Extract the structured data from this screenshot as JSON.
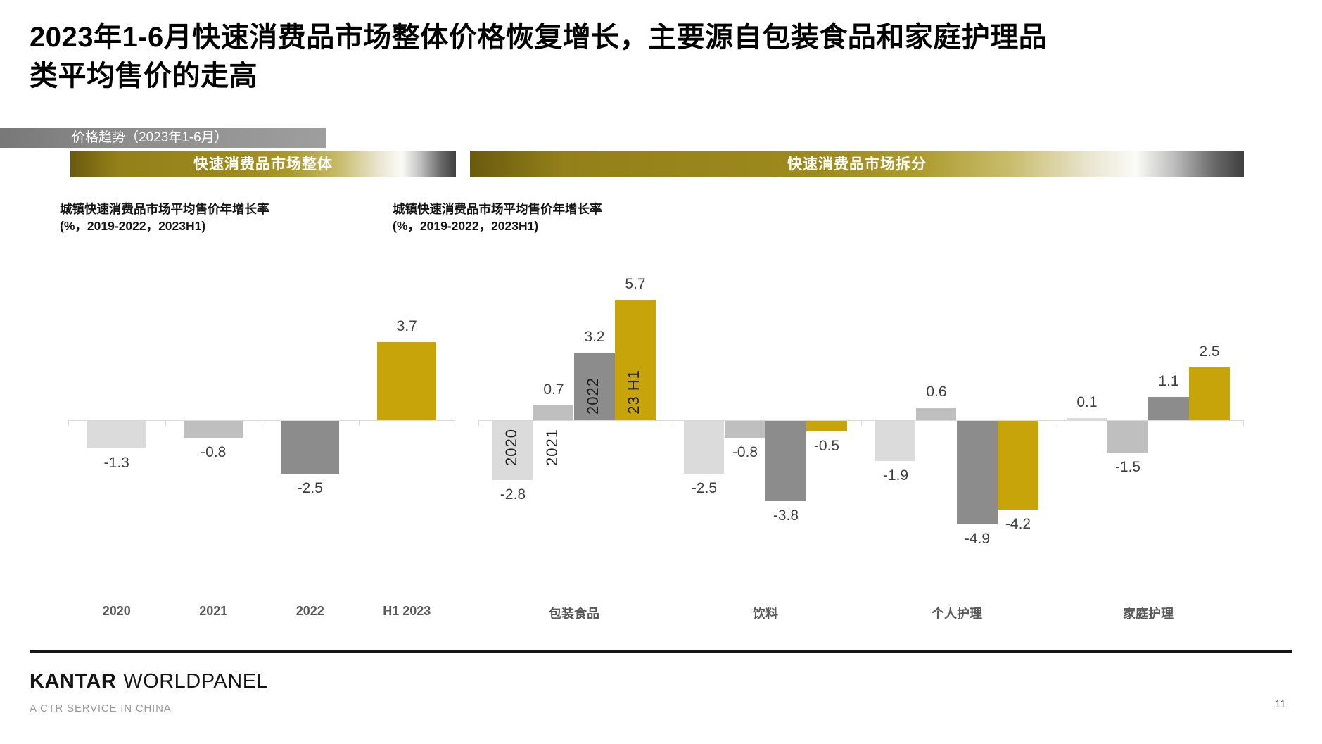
{
  "page": {
    "title": "2023年1-6月快速消费品市场整体价格恢复增长，主要源自包装食品和家庭护理品类平均售价的走高",
    "banner_label": "价格趋势（2023年1-6月）",
    "page_number": "11"
  },
  "section_headers": {
    "left": "快速消费品市场整体",
    "right": "快速消费品市场拆分"
  },
  "chart_data": [
    {
      "type": "bar",
      "title": "城镇快速消费品市场平均售价年增长率",
      "subtitle": "(%，2019-2022，2023H1)",
      "categories": [
        "2020",
        "2021",
        "2022",
        "H1 2023"
      ],
      "values": [
        -1.3,
        -0.8,
        -2.5,
        3.7
      ],
      "ylim": [
        -5.5,
        6.5
      ],
      "grid": false,
      "legend": false
    },
    {
      "type": "bar",
      "title": "城镇快速消费品市场平均售价年增长率",
      "subtitle": "(%，2019-2022，2023H1)",
      "categories": [
        "包装食品",
        "饮料",
        "个人护理",
        "家庭护理"
      ],
      "series": [
        {
          "name": "2020",
          "values": [
            -2.8,
            -2.5,
            -1.9,
            0.1
          ]
        },
        {
          "name": "2021",
          "values": [
            0.7,
            -0.8,
            0.6,
            -1.5
          ]
        },
        {
          "name": "2022",
          "values": [
            3.2,
            -3.8,
            -4.9,
            1.1
          ]
        },
        {
          "name": "23 H1",
          "values": [
            5.7,
            -0.5,
            -4.2,
            2.5
          ]
        }
      ],
      "series_labels_rotated_in_first_group": true,
      "ylim": [
        -5.5,
        6.5
      ],
      "grid": false,
      "legend": false
    }
  ],
  "colors": {
    "series_2020": "#DBDBDB",
    "series_2021": "#BFBFBF",
    "series_2022": "#8C8C8C",
    "series_23h1": "#C7A50A",
    "axis": "#D9D9D9",
    "value_label": "#404040",
    "category_label": "#595959"
  },
  "footer": {
    "brand_primary": "KANTAR",
    "brand_secondary": "WORLDPANEL",
    "tagline": "A CTR SERVICE IN CHINA"
  }
}
